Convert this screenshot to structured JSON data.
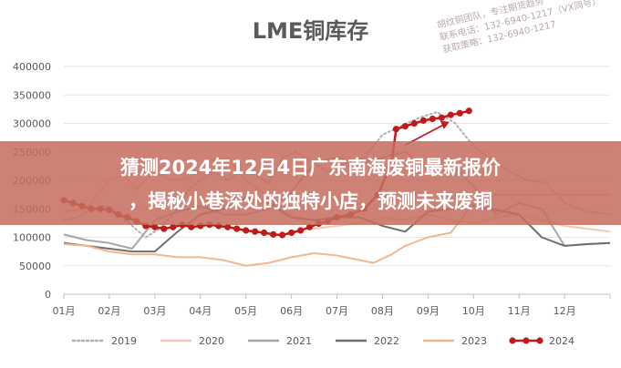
{
  "banner": {
    "line1": "猜测2024年12月4日广东南海废铜最新报价",
    "line2": "，揭秘小巷深处的独特小店，预测未来废铜"
  },
  "watermark": {
    "line1": "胡纹铜团队，专注期货趋势",
    "line2": "联系电话：132-6940-1217（VX同号）",
    "line3": "获取策略：132-6940-1217"
  },
  "colors": {
    "2019": "#b0b0b0",
    "2020": "#f3c9b3",
    "2021": "#a6a6a6",
    "2022": "#6f6f6f",
    "2023": "#f0b793",
    "2024": "#c01a1a",
    "banner": "#c66c5e",
    "grid": "#e6e6e6"
  },
  "chart_data": {
    "type": "line",
    "title": "LME铜库存",
    "xlabel": "",
    "ylabel": "",
    "ylim": [
      0,
      400000
    ],
    "yticks": [
      "0",
      "50000",
      "100000",
      "150000",
      "200000",
      "250000",
      "300000",
      "350000",
      "400000"
    ],
    "categories": [
      "01月",
      "02月",
      "03月",
      "04月",
      "05月",
      "06月",
      "07月",
      "08月",
      "09月",
      "10月",
      "11月",
      "12月"
    ],
    "grid": "horizontal",
    "legend_position": "bottom",
    "series": [
      {
        "name": "2019",
        "style": "dotted",
        "points": [
          [
            1.0,
            130000
          ],
          [
            1.3,
            135000
          ],
          [
            1.6,
            150000
          ],
          [
            1.9,
            155000
          ],
          [
            2.2,
            140000
          ],
          [
            2.5,
            120000
          ],
          [
            2.8,
            100000
          ],
          [
            3.1,
            115000
          ],
          [
            3.4,
            140000
          ],
          [
            3.7,
            180000
          ],
          [
            4.0,
            200000
          ],
          [
            4.3,
            215000
          ],
          [
            4.6,
            200000
          ],
          [
            4.9,
            215000
          ],
          [
            5.2,
            210000
          ],
          [
            5.5,
            195000
          ],
          [
            5.8,
            240000
          ],
          [
            6.1,
            250000
          ],
          [
            6.4,
            235000
          ],
          [
            6.8,
            215000
          ],
          [
            7.2,
            230000
          ],
          [
            7.6,
            240000
          ],
          [
            8.0,
            280000
          ],
          [
            8.4,
            295000
          ],
          [
            8.8,
            310000
          ],
          [
            9.2,
            320000
          ],
          [
            9.6,
            300000
          ],
          [
            10.0,
            260000
          ],
          [
            10.4,
            235000
          ],
          [
            10.8,
            215000
          ],
          [
            11.2,
            200000
          ],
          [
            11.6,
            195000
          ],
          [
            12.0,
            160000
          ],
          [
            12.5,
            145000
          ],
          [
            13.0,
            140000
          ]
        ]
      },
      {
        "name": "2020",
        "style": "solid",
        "points": [
          [
            1.0,
            145000
          ],
          [
            1.5,
            150000
          ],
          [
            2.0,
            200000
          ],
          [
            2.3,
            210000
          ],
          [
            2.6,
            185000
          ],
          [
            3.0,
            215000
          ],
          [
            3.4,
            200000
          ],
          [
            3.8,
            205000
          ],
          [
            4.2,
            235000
          ],
          [
            4.6,
            240000
          ],
          [
            5.0,
            200000
          ],
          [
            5.5,
            170000
          ],
          [
            6.0,
            140000
          ],
          [
            6.5,
            115000
          ],
          [
            7.0,
            120000
          ],
          [
            7.5,
            125000
          ],
          [
            8.0,
            135000
          ],
          [
            8.5,
            130000
          ],
          [
            9.0,
            140000
          ],
          [
            9.5,
            130000
          ],
          [
            10.0,
            125000
          ],
          [
            10.5,
            135000
          ],
          [
            11.0,
            140000
          ],
          [
            11.5,
            130000
          ],
          [
            12.0,
            120000
          ],
          [
            12.5,
            115000
          ],
          [
            13.0,
            110000
          ]
        ]
      },
      {
        "name": "2021",
        "style": "solid",
        "points": [
          [
            1.0,
            105000
          ],
          [
            1.5,
            95000
          ],
          [
            2.0,
            90000
          ],
          [
            2.5,
            80000
          ],
          [
            3.0,
            130000
          ],
          [
            3.5,
            145000
          ],
          [
            4.0,
            155000
          ],
          [
            4.5,
            140000
          ],
          [
            5.0,
            140000
          ],
          [
            5.5,
            150000
          ],
          [
            6.0,
            180000
          ],
          [
            6.5,
            230000
          ],
          [
            7.0,
            240000
          ],
          [
            7.5,
            230000
          ],
          [
            8.0,
            240000
          ],
          [
            8.5,
            250000
          ],
          [
            9.0,
            220000
          ],
          [
            9.5,
            230000
          ],
          [
            10.0,
            190000
          ],
          [
            10.5,
            140000
          ],
          [
            11.0,
            160000
          ],
          [
            11.5,
            150000
          ],
          [
            12.0,
            85000
          ],
          [
            12.5,
            88000
          ],
          [
            13.0,
            90000
          ]
        ]
      },
      {
        "name": "2022",
        "style": "solid",
        "points": [
          [
            1.0,
            90000
          ],
          [
            1.5,
            85000
          ],
          [
            2.0,
            80000
          ],
          [
            2.5,
            75000
          ],
          [
            3.0,
            75000
          ],
          [
            3.5,
            110000
          ],
          [
            4.0,
            140000
          ],
          [
            4.5,
            150000
          ],
          [
            5.0,
            170000
          ],
          [
            5.5,
            160000
          ],
          [
            6.0,
            135000
          ],
          [
            6.5,
            130000
          ],
          [
            7.0,
            135000
          ],
          [
            7.5,
            135000
          ],
          [
            8.0,
            120000
          ],
          [
            8.5,
            110000
          ],
          [
            9.0,
            145000
          ],
          [
            9.5,
            150000
          ],
          [
            10.0,
            155000
          ],
          [
            10.5,
            148000
          ],
          [
            11.0,
            140000
          ],
          [
            11.5,
            100000
          ],
          [
            12.0,
            85000
          ],
          [
            12.5,
            88000
          ],
          [
            13.0,
            90000
          ]
        ]
      },
      {
        "name": "2023",
        "style": "solid",
        "points": [
          [
            1.0,
            88000
          ],
          [
            1.5,
            85000
          ],
          [
            2.0,
            75000
          ],
          [
            2.5,
            70000
          ],
          [
            3.0,
            70000
          ],
          [
            3.5,
            65000
          ],
          [
            4.0,
            65000
          ],
          [
            4.5,
            60000
          ],
          [
            5.0,
            50000
          ],
          [
            5.5,
            55000
          ],
          [
            6.0,
            65000
          ],
          [
            6.5,
            72000
          ],
          [
            7.0,
            68000
          ],
          [
            7.5,
            60000
          ],
          [
            7.8,
            55000
          ],
          [
            8.2,
            70000
          ],
          [
            8.5,
            85000
          ],
          [
            9.0,
            100000
          ],
          [
            9.5,
            108000
          ],
          [
            10.0,
            160000
          ],
          [
            10.5,
            175000
          ],
          [
            11.0,
            175000
          ],
          [
            11.5,
            175000
          ],
          [
            12.0,
            175000
          ],
          [
            12.5,
            175000
          ],
          [
            13.0,
            175000
          ]
        ]
      },
      {
        "name": "2024",
        "style": "solid-markers",
        "points": [
          [
            1.0,
            165000
          ],
          [
            1.2,
            160000
          ],
          [
            1.4,
            155000
          ],
          [
            1.6,
            150000
          ],
          [
            1.8,
            150000
          ],
          [
            2.0,
            148000
          ],
          [
            2.2,
            140000
          ],
          [
            2.4,
            135000
          ],
          [
            2.6,
            128000
          ],
          [
            2.8,
            120000
          ],
          [
            3.0,
            118000
          ],
          [
            3.2,
            115000
          ],
          [
            3.4,
            118000
          ],
          [
            3.6,
            122000
          ],
          [
            3.8,
            118000
          ],
          [
            4.0,
            120000
          ],
          [
            4.2,
            122000
          ],
          [
            4.4,
            120000
          ],
          [
            4.6,
            118000
          ],
          [
            4.8,
            115000
          ],
          [
            5.0,
            112000
          ],
          [
            5.2,
            110000
          ],
          [
            5.4,
            108000
          ],
          [
            5.6,
            105000
          ],
          [
            5.8,
            104000
          ],
          [
            6.0,
            108000
          ],
          [
            6.2,
            112000
          ],
          [
            6.4,
            118000
          ],
          [
            6.6,
            124000
          ],
          [
            6.8,
            128000
          ],
          [
            7.0,
            135000
          ],
          [
            7.3,
            140000
          ],
          [
            7.6,
            150000
          ],
          [
            7.9,
            175000
          ],
          [
            8.2,
            230000
          ],
          [
            8.3,
            290000
          ],
          [
            8.5,
            295000
          ],
          [
            8.7,
            300000
          ],
          [
            8.9,
            305000
          ],
          [
            9.1,
            308000
          ],
          [
            9.3,
            310000
          ],
          [
            9.5,
            315000
          ],
          [
            9.7,
            318000
          ],
          [
            9.9,
            322000
          ]
        ]
      }
    ]
  }
}
